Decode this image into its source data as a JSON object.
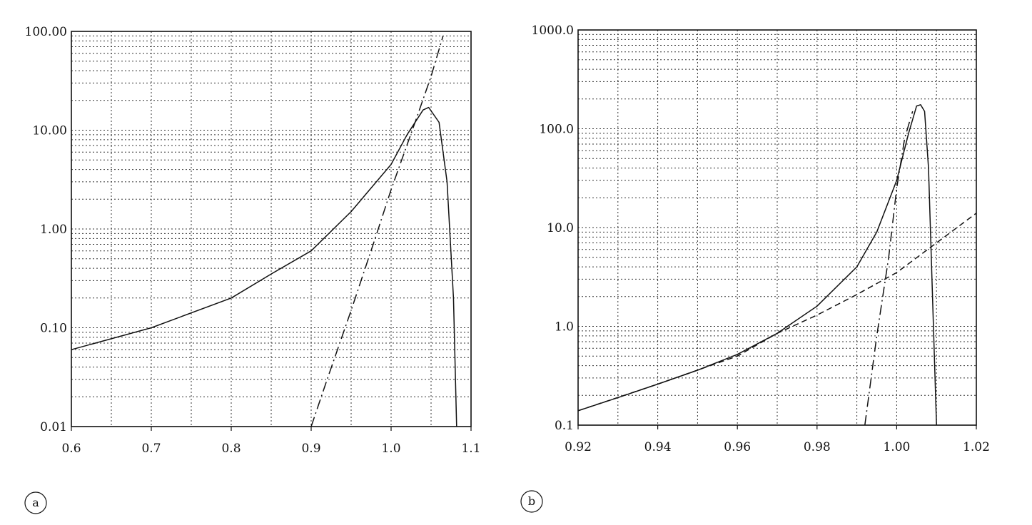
{
  "figure": {
    "panels": [
      {
        "tag": "a"
      },
      {
        "tag": "b"
      }
    ]
  },
  "chart_data": [
    {
      "type": "line",
      "panel": "a",
      "y_scale": "log",
      "xlim": [
        0.6,
        1.1
      ],
      "ylim": [
        0.01,
        100
      ],
      "x_ticks": [
        0.6,
        0.7,
        0.8,
        0.9,
        1.0,
        1.1
      ],
      "x_tick_labels": [
        "0.6",
        "0.7",
        "0.8",
        "0.9",
        "1.0",
        "1.1"
      ],
      "x_minor_step": 0.05,
      "y_ticks": [
        0.01,
        0.1,
        1,
        10,
        100
      ],
      "y_tick_labels": [
        "0.01",
        "0.10",
        "1.00",
        "10.00",
        "100.00"
      ],
      "grid": true,
      "legend": "none",
      "series": [
        {
          "style": "solid",
          "x": [
            0.6,
            0.7,
            0.8,
            0.85,
            0.9,
            0.95,
            1.0,
            1.02,
            1.04,
            1.047,
            1.06,
            1.07,
            1.078,
            1.082
          ],
          "y": [
            0.06,
            0.1,
            0.2,
            0.35,
            0.6,
            1.5,
            4.5,
            9,
            16,
            17,
            12,
            3,
            0.2,
            0.01
          ]
        },
        {
          "style": "dash-dot",
          "x": [
            0.9,
            0.92,
            0.95,
            0.98,
            1.0,
            1.03,
            1.05,
            1.065
          ],
          "y": [
            0.01,
            0.03,
            0.15,
            0.8,
            2.5,
            12,
            35,
            90
          ]
        }
      ]
    },
    {
      "type": "line",
      "panel": "b",
      "y_scale": "log",
      "xlim": [
        0.92,
        1.02
      ],
      "ylim": [
        0.1,
        1000
      ],
      "x_ticks": [
        0.92,
        0.94,
        0.96,
        0.98,
        1.0,
        1.02
      ],
      "x_tick_labels": [
        "0.92",
        "0.94",
        "0.96",
        "0.98",
        "1.00",
        "1.02"
      ],
      "x_minor_step": 0.01,
      "y_ticks": [
        0.1,
        1,
        10,
        100,
        1000
      ],
      "y_tick_labels": [
        "0.1",
        "1.0",
        "10.0",
        "100.0",
        "1000.0"
      ],
      "grid": true,
      "legend": "none",
      "series": [
        {
          "style": "solid",
          "x": [
            0.92,
            0.93,
            0.94,
            0.95,
            0.96,
            0.97,
            0.98,
            0.99,
            0.995,
            1.0,
            1.003,
            1.005,
            1.006,
            1.007,
            1.008,
            1.009,
            1.01
          ],
          "y": [
            0.14,
            0.19,
            0.26,
            0.36,
            0.52,
            0.85,
            1.6,
            4,
            9,
            30,
            90,
            170,
            175,
            150,
            40,
            2,
            0.1
          ]
        },
        {
          "style": "dashed",
          "x": [
            0.92,
            0.94,
            0.96,
            0.97,
            0.98,
            0.99,
            1.0,
            1.01,
            1.02
          ],
          "y": [
            0.14,
            0.26,
            0.5,
            0.85,
            1.3,
            2.1,
            3.5,
            7,
            14
          ]
        },
        {
          "style": "dash-dot",
          "x": [
            0.992,
            0.995,
            0.998,
            1.0,
            1.002,
            1.004
          ],
          "y": [
            0.1,
            0.8,
            5,
            25,
            80,
            150
          ]
        }
      ]
    }
  ]
}
